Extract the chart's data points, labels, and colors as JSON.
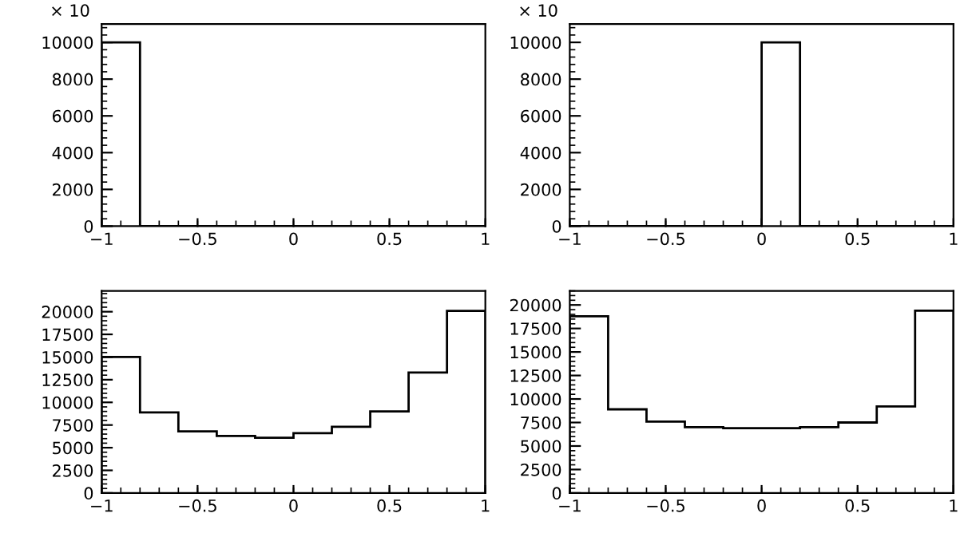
{
  "chart_data": [
    {
      "type": "histogram",
      "bins": [
        -1,
        -0.8,
        -0.6,
        -0.4,
        -0.2,
        0,
        0.2,
        0.4,
        0.6,
        0.8,
        1
      ],
      "values": [
        10000,
        0,
        0,
        0,
        0,
        0,
        0,
        0,
        0,
        0
      ],
      "color": "#000000",
      "xlim": [
        -1,
        1
      ],
      "xticks": [
        -1,
        -0.5,
        0,
        0.5,
        1
      ],
      "ylim": [
        0,
        11000
      ],
      "yticks": [
        0,
        2000,
        4000,
        6000,
        8000,
        10000
      ],
      "ylabel": "× 10",
      "grid": false,
      "legend": false
    },
    {
      "type": "histogram",
      "bins": [
        -1,
        -0.8,
        -0.6,
        -0.4,
        -0.2,
        0,
        0.2,
        0.4,
        0.6,
        0.8,
        1
      ],
      "values": [
        0,
        0,
        0,
        0,
        0,
        10000,
        0,
        0,
        0,
        0
      ],
      "color": "#000000",
      "xlim": [
        -1,
        1
      ],
      "xticks": [
        -1,
        -0.5,
        0,
        0.5,
        1
      ],
      "ylim": [
        0,
        11000
      ],
      "yticks": [
        0,
        2000,
        4000,
        6000,
        8000,
        10000
      ],
      "ylabel": "× 10",
      "grid": false,
      "legend": false
    },
    {
      "type": "histogram",
      "bins": [
        -1,
        -0.8,
        -0.6,
        -0.4,
        -0.2,
        0,
        0.2,
        0.4,
        0.6,
        0.8,
        1
      ],
      "values": [
        15000,
        8900,
        6800,
        6300,
        6100,
        6600,
        7300,
        9000,
        13300,
        20100
      ],
      "color": "#000000",
      "xlim": [
        -1,
        1
      ],
      "xticks": [
        -1,
        -0.5,
        0,
        0.5,
        1
      ],
      "ylim": [
        0,
        22300
      ],
      "yticks": [
        0,
        2500,
        5000,
        7500,
        10000,
        12500,
        15000,
        17500,
        20000
      ],
      "grid": false,
      "legend": false
    },
    {
      "type": "histogram",
      "bins": [
        -1,
        -0.8,
        -0.6,
        -0.4,
        -0.2,
        0,
        0.2,
        0.4,
        0.6,
        0.8,
        1
      ],
      "values": [
        18800,
        8900,
        7600,
        7000,
        6900,
        6900,
        7000,
        7500,
        9200,
        19400
      ],
      "color": "#000000",
      "xlim": [
        -1,
        1
      ],
      "xticks": [
        -1,
        -0.5,
        0,
        0.5,
        1
      ],
      "ylim": [
        0,
        21500
      ],
      "yticks": [
        0,
        2500,
        5000,
        7500,
        10000,
        12500,
        15000,
        17500,
        20000
      ],
      "grid": false,
      "legend": false
    }
  ]
}
